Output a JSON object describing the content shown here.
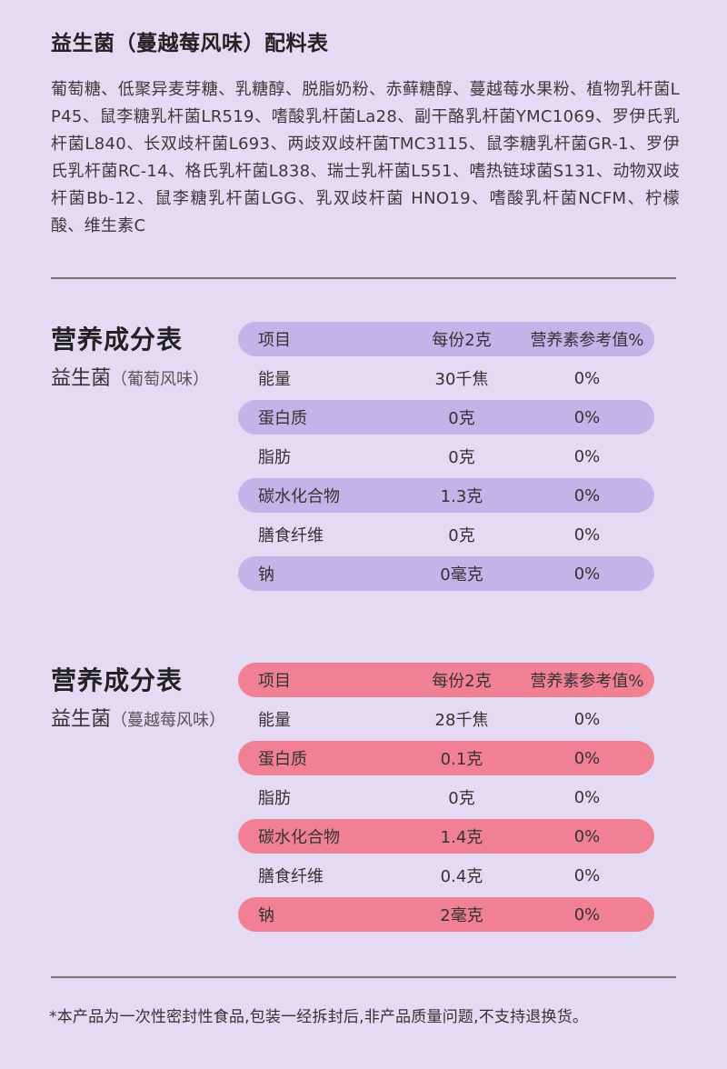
{
  "ingredients": {
    "title": "益生菌（蔓越莓风味）配料表",
    "text": "葡萄糖、低聚异麦芽糖、乳糖醇、脱脂奶粉、赤藓糖醇、蔓越莓水果粉、植物乳杆菌LP45、鼠李糖乳杆菌LR519、嗜酸乳杆菌La28、副干酪乳杆菌YMC1069、罗伊氏乳杆菌L840、长双歧杆菌L693、两歧双歧杆菌TMC3115、鼠李糖乳杆菌GR-1、罗伊氏乳杆菌RC-14、格氏乳杆菌L838、瑞士乳杆菌L551、嗜热链球菌S131、动物双歧杆菌Bb-12、鼠李糖乳杆菌LGG、乳双歧杆菌 HNO19、嗜酸乳杆菌NCFM、柠檬酸、维生素C"
  },
  "nutrition_tables": [
    {
      "heading": "营养成分表",
      "product": "益生菌",
      "flavor": "（葡萄风味）",
      "stripe_color": "#c2b3e8",
      "header": [
        "项目",
        "每份2克",
        "营养素参考值%"
      ],
      "rows": [
        [
          "能量",
          "30千焦",
          "0%"
        ],
        [
          "蛋白质",
          "0克",
          "0%"
        ],
        [
          "脂肪",
          "0克",
          "0%"
        ],
        [
          "碳水化合物",
          "1.3克",
          "0%"
        ],
        [
          "膳食纤维",
          "0克",
          "0%"
        ],
        [
          "钠",
          "0毫克",
          "0%"
        ]
      ]
    },
    {
      "heading": "营养成分表",
      "product": "益生菌",
      "flavor": "（蔓越莓风味）",
      "stripe_color": "#f28095",
      "header": [
        "项目",
        "每份2克",
        "营养素参考值%"
      ],
      "rows": [
        [
          "能量",
          "28千焦",
          "0%"
        ],
        [
          "蛋白质",
          "0.1克",
          "0%"
        ],
        [
          "脂肪",
          "0克",
          "0%"
        ],
        [
          "碳水化合物",
          "1.4克",
          "0%"
        ],
        [
          "膳食纤维",
          "0.4克",
          "0%"
        ],
        [
          "钠",
          "2毫克",
          "0%"
        ]
      ]
    }
  ],
  "footer": "*本产品为一次性密封性食品,包装一经拆封后,非产品质量问题,不支持退换货。"
}
